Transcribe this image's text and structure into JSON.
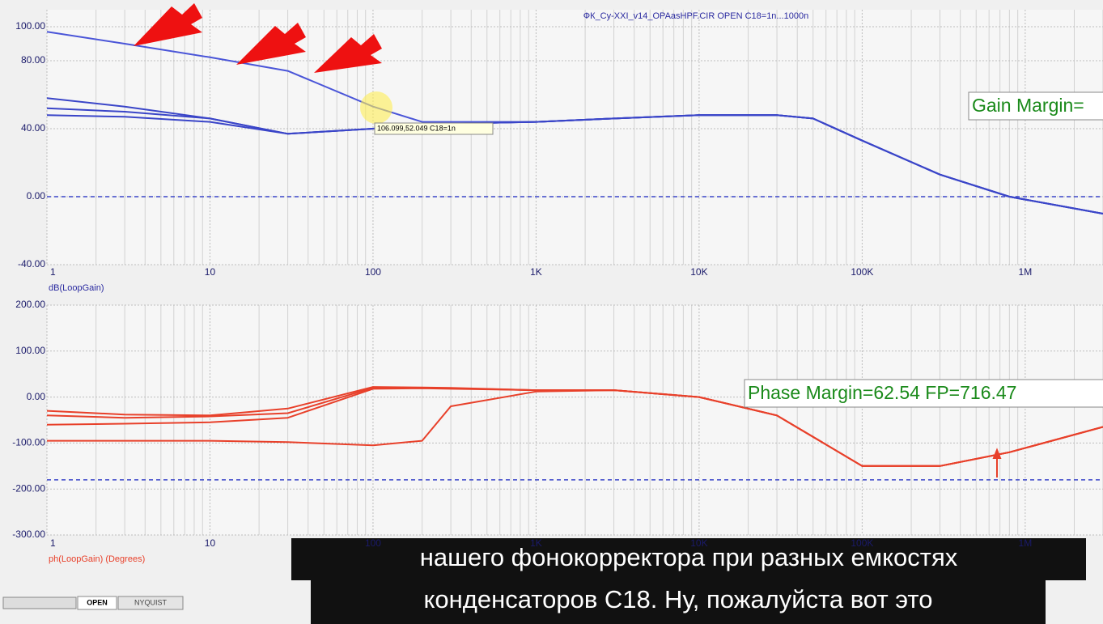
{
  "chart_data": [
    {
      "type": "line",
      "title": "ФК_Cy-XXI_v14_OPAasHPF.CIR OPEN C18=1n...1000n",
      "ylabel": "dB(LoopGain)",
      "log_x": true,
      "grid": true,
      "xlim": [
        1,
        3000000
      ],
      "xticks": [
        1,
        10,
        100,
        {
          "value": 1000,
          "label": "1K"
        },
        {
          "value": 10000,
          "label": "10K"
        },
        {
          "value": 100000,
          "label": "100K"
        },
        {
          "value": 1000000,
          "label": "1M"
        }
      ],
      "ylim": [
        -40,
        100
      ],
      "yticks": [
        {
          "value": -40,
          "label": "-40.00"
        },
        {
          "value": 0,
          "label": "0.00"
        },
        {
          "value": 40,
          "label": "40.00"
        },
        {
          "value": 80,
          "label": "80.00"
        },
        {
          "value": 100,
          "label": "100.00"
        }
      ],
      "reference_lines": [
        0
      ],
      "x": [
        1,
        3,
        10,
        30,
        100,
        200,
        300,
        1000,
        3000,
        10000,
        30000,
        50000,
        100000,
        300000,
        800000,
        3000000
      ],
      "series": [
        {
          "color": "#4a55d8",
          "values": [
            97,
            90,
            82,
            74,
            53,
            44,
            44,
            44,
            46,
            48,
            48,
            46,
            33,
            13,
            0,
            -10
          ]
        },
        {
          "color": "#3a45c8",
          "values": [
            58,
            53,
            46,
            37,
            40,
            42,
            43,
            44,
            46,
            48,
            48,
            46,
            33,
            13,
            0,
            -10
          ]
        },
        {
          "color": "#3a45c8",
          "values": [
            52,
            50,
            46,
            37,
            40,
            42,
            43,
            44,
            46,
            48,
            48,
            46,
            33,
            13,
            0,
            -10
          ]
        },
        {
          "color": "#3a45c8",
          "values": [
            48,
            47,
            44,
            37,
            40,
            42,
            43,
            44,
            46,
            48,
            48,
            46,
            33,
            13,
            0,
            -10
          ]
        }
      ],
      "annotations": [
        "106.099,52.049 C18=1n",
        "Gain Margin="
      ]
    },
    {
      "type": "line",
      "ylabel": "ph(LoopGain) (Degrees)",
      "log_x": true,
      "grid": true,
      "xlim": [
        1,
        3000000
      ],
      "xticks": [
        1,
        10,
        100,
        {
          "value": 1000,
          "label": "1K"
        },
        {
          "value": 10000,
          "label": "10K"
        },
        {
          "value": 100000,
          "label": "100K"
        },
        {
          "value": 1000000,
          "label": "1M"
        }
      ],
      "ylim": [
        -300,
        200
      ],
      "yticks": [
        {
          "value": -300,
          "label": "-300.00"
        },
        {
          "value": -200,
          "label": "-200.00"
        },
        {
          "value": -100,
          "label": "-100.00"
        },
        {
          "value": 0,
          "label": "0.00"
        },
        {
          "value": 100,
          "label": "100.00"
        },
        {
          "value": 200,
          "label": "200.00"
        }
      ],
      "reference_lines": [
        -180
      ],
      "x": [
        1,
        3,
        10,
        30,
        100,
        200,
        300,
        1000,
        3000,
        10000,
        30000,
        100000,
        300000,
        800000,
        3000000
      ],
      "series": [
        {
          "color": "#e8402a",
          "values": [
            -30,
            -38,
            -40,
            -25,
            22,
            21,
            20,
            15,
            15,
            0,
            -40,
            -150,
            -150,
            -120,
            -65
          ]
        },
        {
          "color": "#e8402a",
          "values": [
            -40,
            -45,
            -42,
            -35,
            20,
            20,
            19,
            15,
            15,
            0,
            -40,
            -150,
            -150,
            -120,
            -65
          ]
        },
        {
          "color": "#e8402a",
          "values": [
            -60,
            -58,
            -55,
            -45,
            18,
            19,
            18,
            15,
            15,
            0,
            -40,
            -150,
            -150,
            -120,
            -65
          ]
        },
        {
          "color": "#e8402a",
          "values": [
            -95,
            -95,
            -95,
            -98,
            -105,
            -95,
            -20,
            12,
            15,
            0,
            -40,
            -150,
            -150,
            -120,
            -65
          ]
        }
      ],
      "annotations": [
        "Phase Margin=62.54 FP=716.47"
      ]
    }
  ],
  "tabs": [
    "OPEN",
    "NYQUIST"
  ],
  "captions": [
    "нашего фонокорректора при разных емкостях",
    "конденсаторов С18. Ну, пожалуйста вот это"
  ]
}
